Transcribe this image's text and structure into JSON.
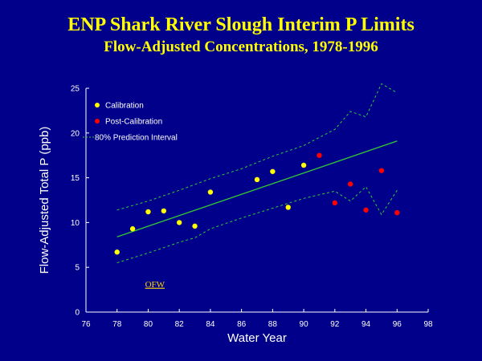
{
  "header": {
    "title": "ENP Shark River Slough Interim P Limits",
    "subtitle": "Flow-Adjusted Concentrations, 1978-1996"
  },
  "colors": {
    "background": "#00008b",
    "title": "#ffff00",
    "calibration": "#ffff00",
    "post_calibration": "#ff0000",
    "regression_line": "#33cc33",
    "interval": "#33cc33",
    "annotation": "#ffd700"
  },
  "chart_data": {
    "type": "scatter",
    "title": "ENP Shark River Slough Interim P Limits",
    "subtitle": "Flow-Adjusted Concentrations, 1978-1996",
    "xlabel": "Water Year",
    "ylabel": "Flow-Adjusted Total P (ppb)",
    "xlim": [
      76,
      98
    ],
    "ylim": [
      0,
      25
    ],
    "xticks": [
      76,
      78,
      80,
      82,
      84,
      86,
      88,
      90,
      92,
      94,
      96,
      98
    ],
    "yticks": [
      0,
      5,
      10,
      15,
      20,
      25
    ],
    "grid": false,
    "legend_position": "top-left",
    "series": [
      {
        "name": "Calibration",
        "marker": "yellow-dot",
        "points": [
          {
            "x": 78,
            "y": 6.7
          },
          {
            "x": 79,
            "y": 9.3
          },
          {
            "x": 80,
            "y": 11.2
          },
          {
            "x": 81,
            "y": 11.3
          },
          {
            "x": 82,
            "y": 10.0
          },
          {
            "x": 83,
            "y": 9.6
          },
          {
            "x": 84,
            "y": 13.4
          },
          {
            "x": 87,
            "y": 14.8
          },
          {
            "x": 88,
            "y": 15.7
          },
          {
            "x": 89,
            "y": 11.7
          },
          {
            "x": 90,
            "y": 16.4
          }
        ]
      },
      {
        "name": "Post-Calibration",
        "marker": "red-dot",
        "points": [
          {
            "x": 91,
            "y": 17.5
          },
          {
            "x": 92,
            "y": 12.2
          },
          {
            "x": 93,
            "y": 14.3
          },
          {
            "x": 94,
            "y": 11.4
          },
          {
            "x": 95,
            "y": 15.8
          },
          {
            "x": 96,
            "y": 11.1
          }
        ]
      },
      {
        "name": "",
        "style": "solid-line",
        "points": [
          {
            "x": 78,
            "y": 8.4
          },
          {
            "x": 96,
            "y": 19.1
          }
        ]
      },
      {
        "name": "80% Prediction Interval",
        "style": "dashed-line",
        "upper": [
          {
            "x": 78,
            "y": 11.4
          },
          {
            "x": 80,
            "y": 12.4
          },
          {
            "x": 82,
            "y": 13.6
          },
          {
            "x": 84,
            "y": 14.9
          },
          {
            "x": 86,
            "y": 16.0
          },
          {
            "x": 88,
            "y": 17.4
          },
          {
            "x": 90,
            "y": 18.6
          },
          {
            "x": 92,
            "y": 20.4
          },
          {
            "x": 93,
            "y": 22.4
          },
          {
            "x": 94,
            "y": 21.8
          },
          {
            "x": 95,
            "y": 25.5
          },
          {
            "x": 96,
            "y": 24.5
          }
        ],
        "lower": [
          {
            "x": 78,
            "y": 5.5
          },
          {
            "x": 80,
            "y": 6.6
          },
          {
            "x": 82,
            "y": 7.8
          },
          {
            "x": 83,
            "y": 8.3
          },
          {
            "x": 84,
            "y": 9.3
          },
          {
            "x": 86,
            "y": 10.5
          },
          {
            "x": 88,
            "y": 11.6
          },
          {
            "x": 90,
            "y": 12.7
          },
          {
            "x": 92,
            "y": 13.5
          },
          {
            "x": 93,
            "y": 12.4
          },
          {
            "x": 94,
            "y": 14.0
          },
          {
            "x": 95,
            "y": 10.9
          },
          {
            "x": 96,
            "y": 13.6
          }
        ]
      }
    ],
    "annotations": [
      {
        "text": "OFW",
        "x": 79.8,
        "y": 2.8
      }
    ]
  }
}
